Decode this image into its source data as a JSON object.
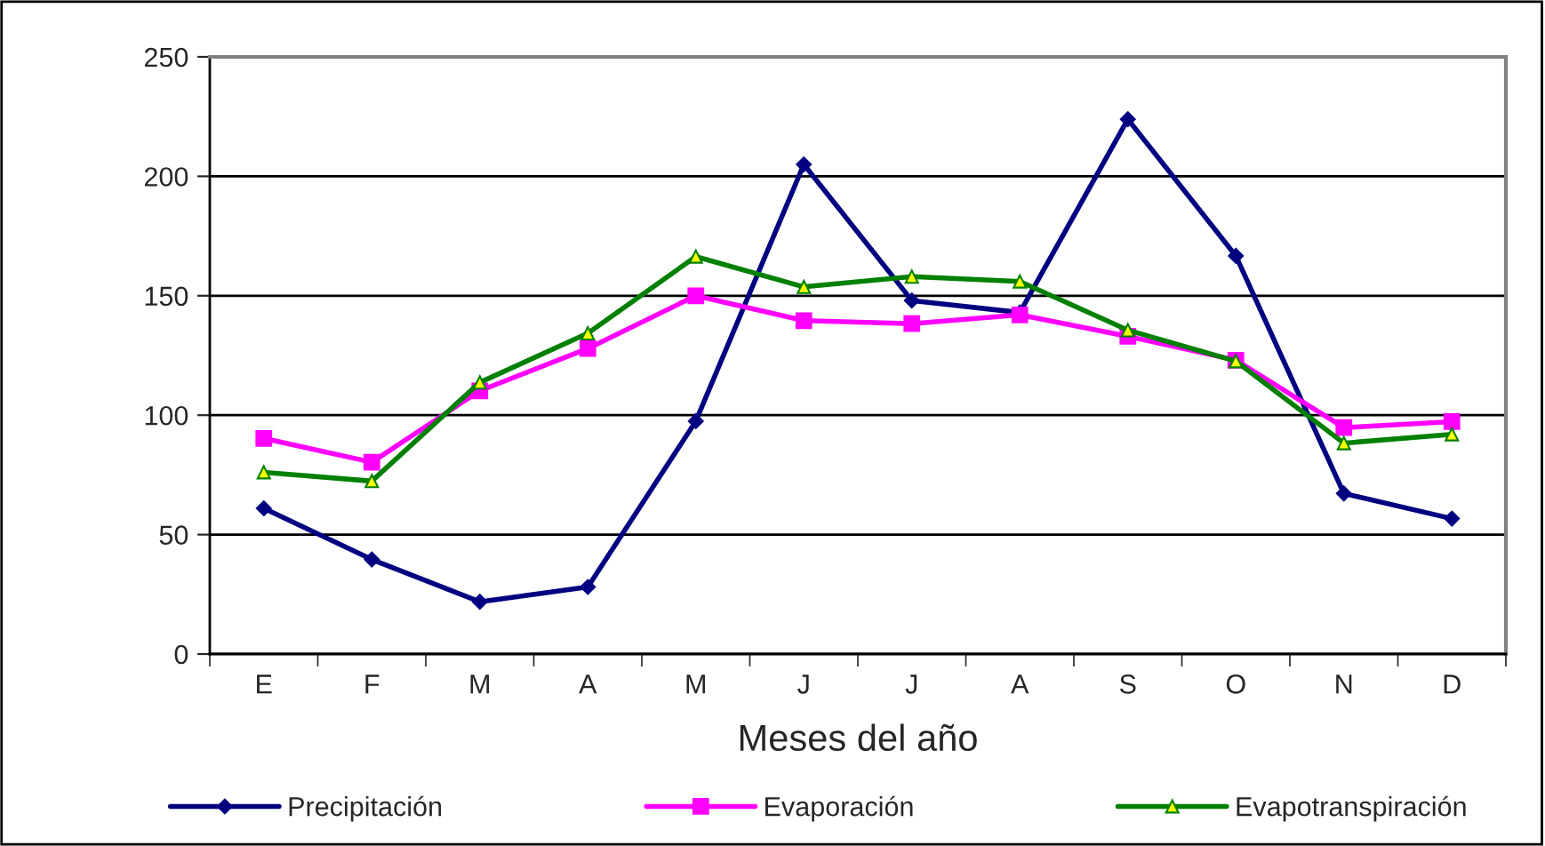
{
  "chart_data": {
    "type": "line",
    "xlabel": "Meses del año",
    "categories": [
      "E",
      "F",
      "M",
      "A",
      "M",
      "J",
      "J",
      "A",
      "S",
      "O",
      "N",
      "D"
    ],
    "series": [
      {
        "name": "Precipitación",
        "color": "#000080",
        "marker": "diamond",
        "values": [
          61,
          39.6,
          21.9,
          28.1,
          97.5,
          205,
          148,
          143,
          223.9,
          166.7,
          67.2,
          56.7
        ]
      },
      {
        "name": "Evaporación",
        "color": "#ff00ff",
        "marker": "square",
        "values": [
          90.3,
          80.3,
          110.2,
          127.9,
          150,
          139.6,
          138.3,
          142,
          133,
          123,
          94.8,
          97.3
        ]
      },
      {
        "name": "Evapotranspiración",
        "color": "#008000",
        "marker": "triangle",
        "values": [
          76.1,
          72.4,
          113.7,
          134.3,
          166.4,
          153.7,
          158,
          156,
          135.6,
          122.6,
          88.3,
          92
        ]
      }
    ],
    "ylim": [
      0,
      250
    ],
    "yticks": [
      0,
      50,
      100,
      150,
      200,
      250
    ],
    "grid": "y",
    "legend": "bottom"
  }
}
